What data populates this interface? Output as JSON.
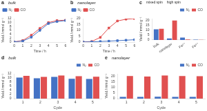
{
  "chart_data": [
    {
      "type": "line",
      "title": "bulk",
      "annotations": [
        "a"
      ],
      "xlabel": "Time / h",
      "ylabel": "Yield / mmol g⁻¹",
      "x": [
        0,
        1,
        2,
        3,
        4,
        5,
        6
      ],
      "series": [
        {
          "name": "N₂",
          "color": "#4472c4",
          "marker": "square",
          "values": [
            0.1,
            0.5,
            2.5,
            6.0,
            9.5,
            10.5,
            11.0
          ]
        },
        {
          "name": "CO",
          "color": "#e05050",
          "marker": "square",
          "values": [
            0.1,
            0.8,
            3.5,
            7.0,
            10.0,
            11.0,
            11.2
          ]
        }
      ],
      "xlim": [
        0,
        6
      ],
      "xticks": [
        0,
        1,
        2,
        3,
        4,
        5,
        6
      ],
      "ylim": [
        0,
        12
      ],
      "yticks": [
        0,
        2,
        4,
        6,
        8,
        10,
        12
      ],
      "grid": false,
      "legend": "upper left"
    },
    {
      "type": "line",
      "title": "nanolayer",
      "annotations": [
        "b"
      ],
      "xlabel": "Time / h",
      "ylabel": "Yield / mmol g⁻¹",
      "x": [
        0,
        1,
        2,
        3,
        4,
        5,
        6
      ],
      "series": [
        {
          "name": "N₂",
          "color": "#4472c4",
          "marker": "square",
          "values": [
            0.1,
            0.2,
            0.5,
            0.8,
            1.2,
            1.6,
            2.0
          ]
        },
        {
          "name": "CO",
          "color": "#e05050",
          "marker": "square",
          "values": [
            0.1,
            0.5,
            4.0,
            12.0,
            18.0,
            19.5,
            20.0
          ]
        }
      ],
      "xlim": [
        0,
        6
      ],
      "xticks": [
        0,
        1,
        2,
        3,
        4,
        5,
        6
      ],
      "ylim": [
        0,
        20
      ],
      "yticks": [
        0,
        5,
        10,
        15,
        20
      ],
      "grid": false,
      "legend": "upper left"
    },
    {
      "type": "bar",
      "annotations": [
        "c",
        "mixed spin",
        "high spin"
      ],
      "ylabel": "Yield / mmol g⁻¹",
      "categories": [
        "bulk",
        "nanolayer",
        "Fe²⁺",
        "Fe³⁺"
      ],
      "series": [
        {
          "name": "N₂",
          "color": "#4472c4",
          "values": [
            11.0,
            1.5,
            2.5,
            0.3
          ]
        },
        {
          "name": "CO",
          "color": "#e05050",
          "values": [
            11.5,
            20.0,
            0.5,
            0.1
          ]
        }
      ],
      "ylim": [
        0,
        22
      ],
      "yticks": [
        0,
        5,
        10,
        15,
        20
      ],
      "grid": false,
      "legend": "upper right"
    },
    {
      "type": "bar",
      "title": "bulk",
      "annotations": [
        "d"
      ],
      "xlabel": "Cycle",
      "ylabel": "Yield / mmol g⁻¹",
      "categories": [
        1,
        2,
        3,
        4,
        5
      ],
      "series": [
        {
          "name": "N₂",
          "color": "#4472c4",
          "values": [
            10.2,
            9.8,
            10.5,
            9.6,
            9.5
          ]
        },
        {
          "name": "CO",
          "color": "#e05050",
          "values": [
            11.0,
            10.5,
            11.2,
            10.8,
            10.6
          ]
        }
      ],
      "ylim": [
        0,
        12
      ],
      "yticks": [
        0,
        2,
        4,
        6,
        8,
        10,
        12
      ],
      "grid": false,
      "legend": "upper right"
    },
    {
      "type": "bar",
      "title": "nanolayer",
      "annotations": [
        "e"
      ],
      "xlabel": "Cycle",
      "ylabel": "Yield / mmol g⁻¹",
      "categories": [
        1,
        2,
        3,
        4,
        5
      ],
      "series": [
        {
          "name": "N₂",
          "color": "#4472c4",
          "values": [
            1.6,
            1.5,
            1.7,
            1.6,
            1.5
          ]
        },
        {
          "name": "CO",
          "color": "#e05050",
          "values": [
            20.0,
            19.5,
            20.5,
            20.0,
            19.8
          ]
        }
      ],
      "ylim": [
        0,
        22
      ],
      "yticks": [
        0,
        5,
        10,
        15,
        20
      ],
      "grid": false,
      "legend": "upper right"
    }
  ]
}
